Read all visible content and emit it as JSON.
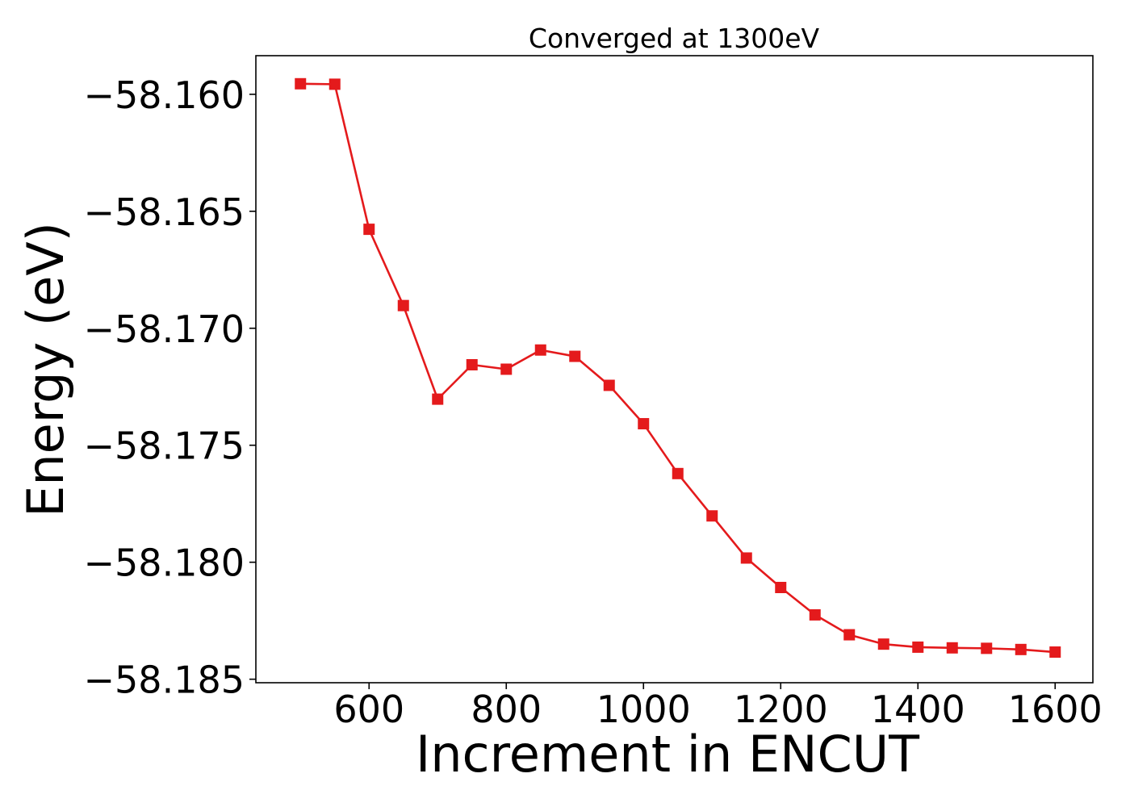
{
  "chart_data": {
    "type": "line",
    "title": "Converged at 1300eV",
    "xlabel": "Increment in ENCUT",
    "ylabel": "Energy (eV)",
    "xlim": [
      435,
      1655
    ],
    "ylim": [
      -58.18515,
      -58.15835
    ],
    "grid": false,
    "legend": "none",
    "x_ticks": [
      600,
      800,
      1000,
      1200,
      1400,
      1600
    ],
    "x_tick_labels": [
      "600",
      "800",
      "1000",
      "1200",
      "1400",
      "1600"
    ],
    "y_ticks": [
      -58.16,
      -58.165,
      -58.17,
      -58.175,
      -58.18,
      -58.185
    ],
    "y_tick_labels": [
      "−58.160",
      "−58.165",
      "−58.170",
      "−58.175",
      "−58.180",
      "−58.185"
    ],
    "series": [
      {
        "color": "#e41a1c",
        "marker": "square",
        "x": [
          500,
          550,
          600,
          650,
          700,
          750,
          800,
          850,
          900,
          950,
          1000,
          1050,
          1100,
          1150,
          1200,
          1250,
          1300,
          1350,
          1400,
          1450,
          1500,
          1550,
          1600
        ],
        "values": [
          -58.15955,
          -58.15957,
          -58.16577,
          -58.16903,
          -58.17303,
          -58.17156,
          -58.17175,
          -58.17093,
          -58.1712,
          -58.17244,
          -58.17408,
          -58.17621,
          -58.17802,
          -58.17982,
          -58.18108,
          -58.18225,
          -58.1831,
          -58.1835,
          -58.18363,
          -58.18366,
          -58.18368,
          -58.18373,
          -58.18384
        ]
      }
    ]
  }
}
